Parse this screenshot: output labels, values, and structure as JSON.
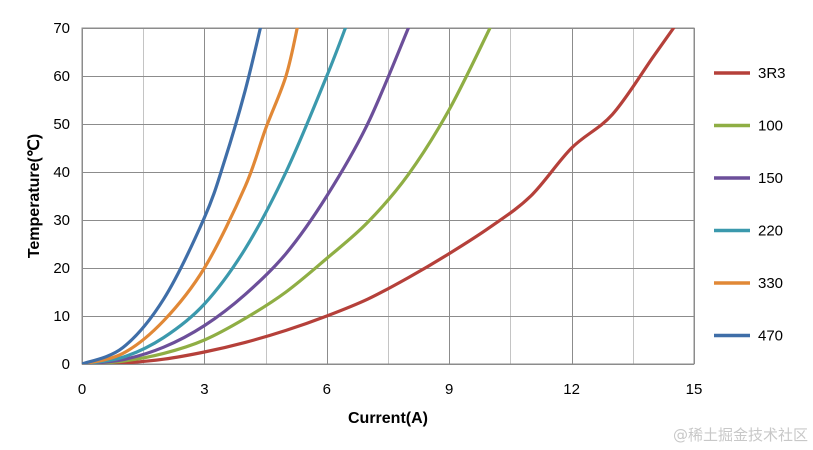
{
  "chart_data": {
    "type": "line",
    "title": "",
    "xlabel": "Current(A)",
    "ylabel": "Temperature(℃)",
    "xlim": [
      0,
      15
    ],
    "ylim": [
      0,
      70
    ],
    "xticks": [
      0,
      3,
      6,
      9,
      12,
      15
    ],
    "yticks": [
      0,
      10,
      20,
      30,
      40,
      50,
      60,
      70
    ],
    "grid": true,
    "legend_position": "right",
    "series": [
      {
        "name": "3R3",
        "color": "#b5403a",
        "x": [
          0,
          1,
          2,
          3,
          4,
          5,
          6,
          7,
          8,
          9,
          10,
          11,
          12,
          13,
          14,
          14.5
        ],
        "y": [
          0,
          0.2,
          1,
          2.5,
          4.5,
          7,
          10,
          13.5,
          18,
          23,
          28.5,
          35,
          45,
          52,
          64,
          70
        ]
      },
      {
        "name": "100",
        "color": "#8fae44",
        "x": [
          0,
          1,
          2,
          3,
          4,
          5,
          6,
          7,
          8,
          9,
          10
        ],
        "y": [
          0,
          0.6,
          2.2,
          5,
          9.5,
          15,
          22,
          29.5,
          39.5,
          53,
          70
        ]
      },
      {
        "name": "150",
        "color": "#6c4f9a",
        "x": [
          0,
          1,
          2,
          3,
          4,
          5,
          6,
          7,
          8
        ],
        "y": [
          0,
          0.9,
          3.5,
          8,
          14.5,
          23,
          35,
          50,
          70
        ]
      },
      {
        "name": "220",
        "color": "#3b99ad",
        "x": [
          0,
          1,
          2,
          3,
          4,
          5,
          6,
          6.5
        ],
        "y": [
          0,
          1.4,
          5.5,
          12.5,
          24,
          40,
          60,
          71
        ]
      },
      {
        "name": "330",
        "color": "#e18836",
        "x": [
          0,
          1,
          2,
          3,
          4,
          4.5,
          5,
          5.3
        ],
        "y": [
          0,
          2.2,
          9,
          20,
          37,
          49,
          60,
          71
        ]
      },
      {
        "name": "470",
        "color": "#3f6ea8",
        "x": [
          0,
          1,
          2,
          3,
          3.5,
          4,
          4.4
        ],
        "y": [
          0,
          3.4,
          13.5,
          30.5,
          42.5,
          57,
          71
        ]
      }
    ]
  },
  "watermark": "@稀土掘金技术社区"
}
